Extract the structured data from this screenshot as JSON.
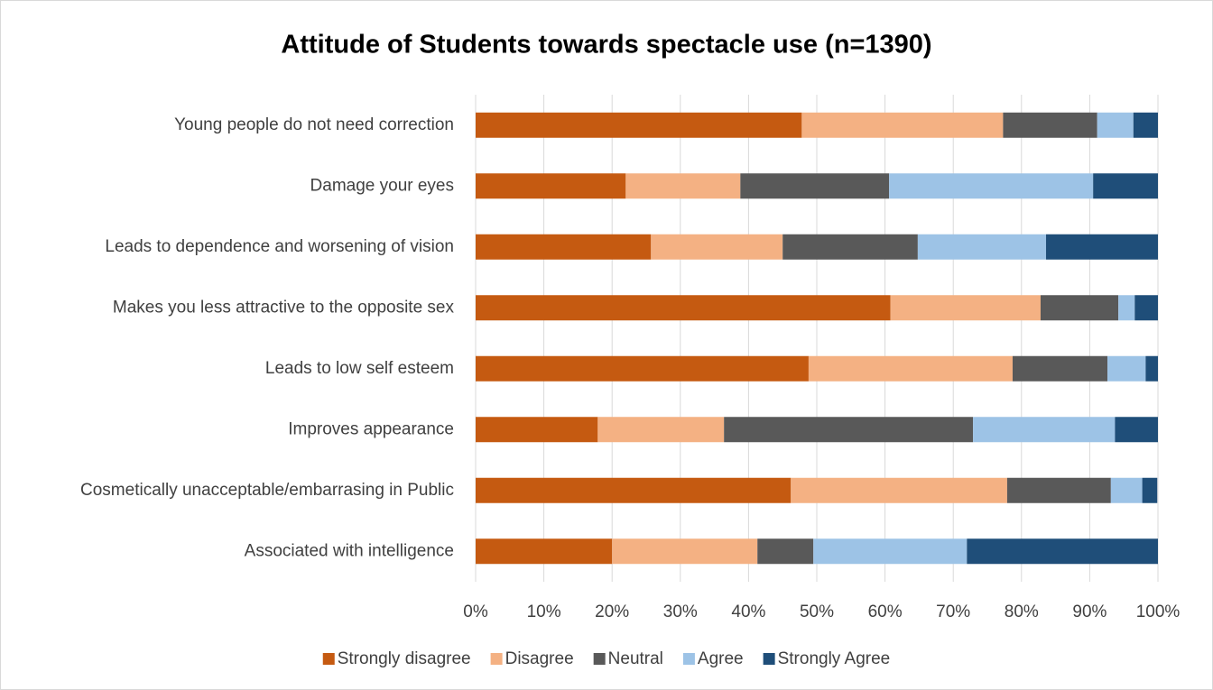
{
  "chart_data": {
    "type": "stacked_barh",
    "title": "Attitude of Students towards spectacle use (n=1390)",
    "categories": [
      "Young people do not need correction",
      "Damage your eyes",
      "Leads to dependence and worsening of vision",
      "Makes you less attractive to the opposite sex",
      "Leads to low self esteem",
      "Improves appearance",
      "Cosmetically unacceptable/embarrasing in Public",
      "Associated with intelligence"
    ],
    "series": [
      {
        "name": "Strongly disagree",
        "color": "#c55a11",
        "values": [
          47.8,
          22.0,
          25.7,
          60.8,
          48.8,
          17.9,
          46.2,
          20.0
        ]
      },
      {
        "name": "Disagree",
        "color": "#f4b183",
        "values": [
          29.5,
          16.8,
          19.3,
          22.0,
          29.9,
          18.5,
          31.7,
          21.3
        ]
      },
      {
        "name": "Neutral",
        "color": "#595959",
        "values": [
          13.8,
          21.8,
          19.8,
          11.4,
          13.9,
          36.5,
          15.2,
          8.2
        ]
      },
      {
        "name": "Agree",
        "color": "#9dc3e6",
        "values": [
          5.3,
          29.9,
          18.8,
          2.4,
          5.6,
          20.8,
          4.6,
          22.5
        ]
      },
      {
        "name": "Strongly Agree",
        "color": "#1f4e79",
        "values": [
          3.6,
          9.5,
          16.4,
          3.4,
          1.8,
          6.3,
          2.2,
          28.0
        ]
      }
    ],
    "xlim": [
      0,
      100
    ],
    "xticks": [
      {
        "value": 0,
        "label": "0%"
      },
      {
        "value": 10,
        "label": "10%"
      },
      {
        "value": 20,
        "label": "20%"
      },
      {
        "value": 30,
        "label": "30%"
      },
      {
        "value": 40,
        "label": "40%"
      },
      {
        "value": 50,
        "label": "50%"
      },
      {
        "value": 60,
        "label": "60%"
      },
      {
        "value": 70,
        "label": "70%"
      },
      {
        "value": 80,
        "label": "80%"
      },
      {
        "value": 90,
        "label": "90%"
      },
      {
        "value": 100,
        "label": "100%"
      }
    ],
    "grid": true,
    "legend": "bottom"
  }
}
